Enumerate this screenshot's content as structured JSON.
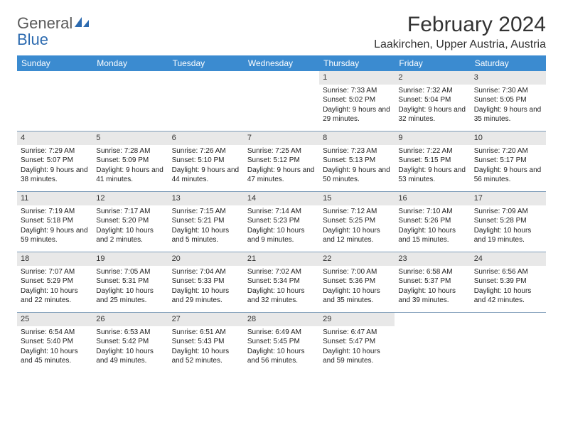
{
  "logo": {
    "text1": "General",
    "text2": "Blue"
  },
  "title": "February 2024",
  "location": "Laakirchen, Upper Austria, Austria",
  "colors": {
    "header_bg": "#3b8bd0",
    "header_text": "#ffffff",
    "daynum_bg": "#e8e8e8",
    "rule": "#7f9db9",
    "logo_gray": "#5a5a5a",
    "logo_blue": "#2d6bb0"
  },
  "day_names": [
    "Sunday",
    "Monday",
    "Tuesday",
    "Wednesday",
    "Thursday",
    "Friday",
    "Saturday"
  ],
  "first_weekday": 4,
  "days": [
    {
      "n": 1,
      "sr": "7:33 AM",
      "ss": "5:02 PM",
      "dl": "9 hours and 29 minutes."
    },
    {
      "n": 2,
      "sr": "7:32 AM",
      "ss": "5:04 PM",
      "dl": "9 hours and 32 minutes."
    },
    {
      "n": 3,
      "sr": "7:30 AM",
      "ss": "5:05 PM",
      "dl": "9 hours and 35 minutes."
    },
    {
      "n": 4,
      "sr": "7:29 AM",
      "ss": "5:07 PM",
      "dl": "9 hours and 38 minutes."
    },
    {
      "n": 5,
      "sr": "7:28 AM",
      "ss": "5:09 PM",
      "dl": "9 hours and 41 minutes."
    },
    {
      "n": 6,
      "sr": "7:26 AM",
      "ss": "5:10 PM",
      "dl": "9 hours and 44 minutes."
    },
    {
      "n": 7,
      "sr": "7:25 AM",
      "ss": "5:12 PM",
      "dl": "9 hours and 47 minutes."
    },
    {
      "n": 8,
      "sr": "7:23 AM",
      "ss": "5:13 PM",
      "dl": "9 hours and 50 minutes."
    },
    {
      "n": 9,
      "sr": "7:22 AM",
      "ss": "5:15 PM",
      "dl": "9 hours and 53 minutes."
    },
    {
      "n": 10,
      "sr": "7:20 AM",
      "ss": "5:17 PM",
      "dl": "9 hours and 56 minutes."
    },
    {
      "n": 11,
      "sr": "7:19 AM",
      "ss": "5:18 PM",
      "dl": "9 hours and 59 minutes."
    },
    {
      "n": 12,
      "sr": "7:17 AM",
      "ss": "5:20 PM",
      "dl": "10 hours and 2 minutes."
    },
    {
      "n": 13,
      "sr": "7:15 AM",
      "ss": "5:21 PM",
      "dl": "10 hours and 5 minutes."
    },
    {
      "n": 14,
      "sr": "7:14 AM",
      "ss": "5:23 PM",
      "dl": "10 hours and 9 minutes."
    },
    {
      "n": 15,
      "sr": "7:12 AM",
      "ss": "5:25 PM",
      "dl": "10 hours and 12 minutes."
    },
    {
      "n": 16,
      "sr": "7:10 AM",
      "ss": "5:26 PM",
      "dl": "10 hours and 15 minutes."
    },
    {
      "n": 17,
      "sr": "7:09 AM",
      "ss": "5:28 PM",
      "dl": "10 hours and 19 minutes."
    },
    {
      "n": 18,
      "sr": "7:07 AM",
      "ss": "5:29 PM",
      "dl": "10 hours and 22 minutes."
    },
    {
      "n": 19,
      "sr": "7:05 AM",
      "ss": "5:31 PM",
      "dl": "10 hours and 25 minutes."
    },
    {
      "n": 20,
      "sr": "7:04 AM",
      "ss": "5:33 PM",
      "dl": "10 hours and 29 minutes."
    },
    {
      "n": 21,
      "sr": "7:02 AM",
      "ss": "5:34 PM",
      "dl": "10 hours and 32 minutes."
    },
    {
      "n": 22,
      "sr": "7:00 AM",
      "ss": "5:36 PM",
      "dl": "10 hours and 35 minutes."
    },
    {
      "n": 23,
      "sr": "6:58 AM",
      "ss": "5:37 PM",
      "dl": "10 hours and 39 minutes."
    },
    {
      "n": 24,
      "sr": "6:56 AM",
      "ss": "5:39 PM",
      "dl": "10 hours and 42 minutes."
    },
    {
      "n": 25,
      "sr": "6:54 AM",
      "ss": "5:40 PM",
      "dl": "10 hours and 45 minutes."
    },
    {
      "n": 26,
      "sr": "6:53 AM",
      "ss": "5:42 PM",
      "dl": "10 hours and 49 minutes."
    },
    {
      "n": 27,
      "sr": "6:51 AM",
      "ss": "5:43 PM",
      "dl": "10 hours and 52 minutes."
    },
    {
      "n": 28,
      "sr": "6:49 AM",
      "ss": "5:45 PM",
      "dl": "10 hours and 56 minutes."
    },
    {
      "n": 29,
      "sr": "6:47 AM",
      "ss": "5:47 PM",
      "dl": "10 hours and 59 minutes."
    }
  ],
  "labels": {
    "sunrise": "Sunrise: ",
    "sunset": "Sunset: ",
    "daylight": "Daylight: "
  }
}
